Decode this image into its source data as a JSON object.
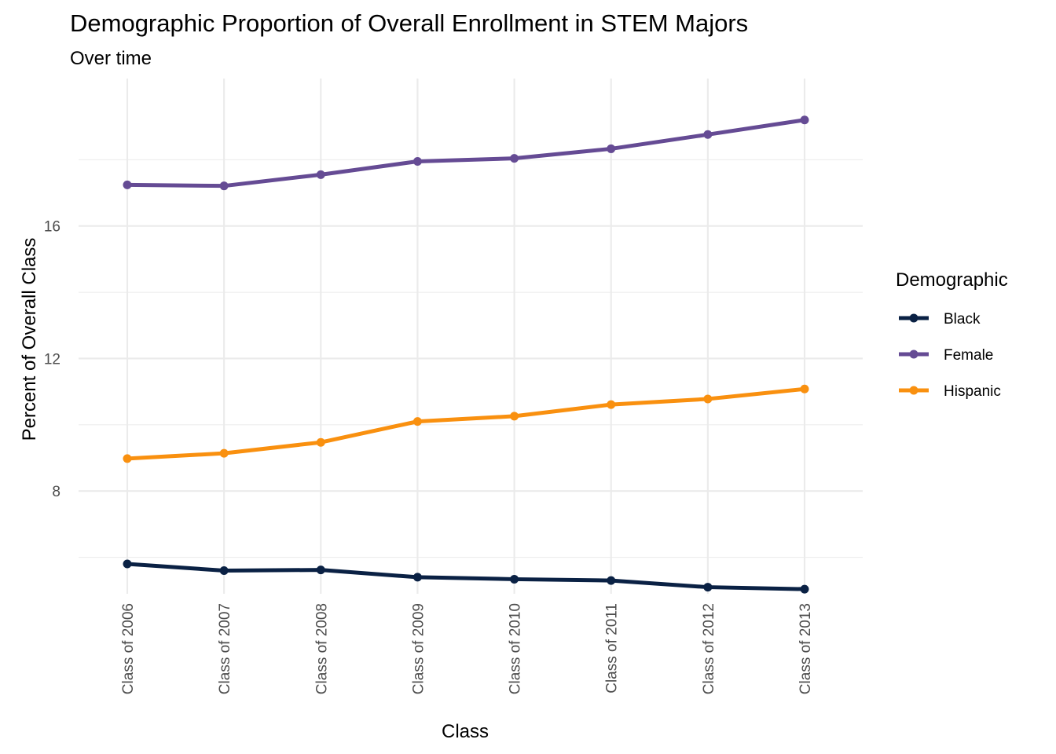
{
  "chart_data": {
    "type": "line",
    "title": "Demographic Proportion of Overall Enrollment in STEM Majors",
    "subtitle": "Over time",
    "xlabel": "Class",
    "ylabel": "Percent of Overall Class",
    "categories": [
      "Class of 2006",
      "Class of 2007",
      "Class of 2008",
      "Class of 2009",
      "Class of 2010",
      "Class of 2011",
      "Class of 2012",
      "Class of 2013"
    ],
    "y_ticks": [
      8,
      12,
      16
    ],
    "ylim": [
      4.9,
      20.45
    ],
    "grid": true,
    "legend": {
      "title": "Demographic",
      "position": "right"
    },
    "series": [
      {
        "name": "Black",
        "color": "#0a2144",
        "values": [
          5.8,
          5.6,
          5.62,
          5.4,
          5.34,
          5.3,
          5.1,
          5.04
        ]
      },
      {
        "name": "Female",
        "color": "#654b94",
        "values": [
          17.24,
          17.21,
          17.55,
          17.95,
          18.04,
          18.33,
          18.76,
          19.2
        ]
      },
      {
        "name": "Hispanic",
        "color": "#f9900f",
        "values": [
          8.98,
          9.14,
          9.47,
          10.1,
          10.26,
          10.61,
          10.78,
          11.08
        ]
      }
    ]
  }
}
